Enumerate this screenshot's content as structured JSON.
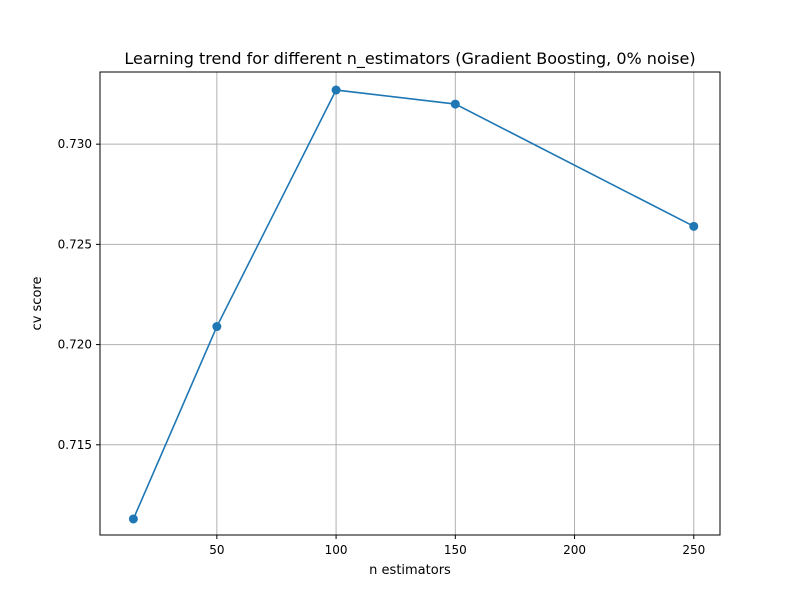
{
  "chart_data": {
    "type": "line",
    "title": "Learning trend for different n_estimators (Gradient Boosting, 0% noise)",
    "xlabel": "n estimators",
    "ylabel": "cv score",
    "xlim": [
      1,
      261
    ],
    "ylim": [
      0.7105,
      0.7336
    ],
    "xticks": [
      50,
      100,
      150,
      200,
      250
    ],
    "xtick_labels": [
      "50",
      "100",
      "150",
      "200",
      "250"
    ],
    "yticks": [
      0.715,
      0.72,
      0.725,
      0.73
    ],
    "ytick_labels": [
      "0.715",
      "0.720",
      "0.725",
      "0.730"
    ],
    "grid": true,
    "series": [
      {
        "color": "#1f77b4",
        "marker": "circle",
        "x": [
          15,
          50,
          100,
          150,
          250
        ],
        "y": [
          0.7113,
          0.7209,
          0.7327,
          0.732,
          0.7259
        ]
      }
    ]
  }
}
